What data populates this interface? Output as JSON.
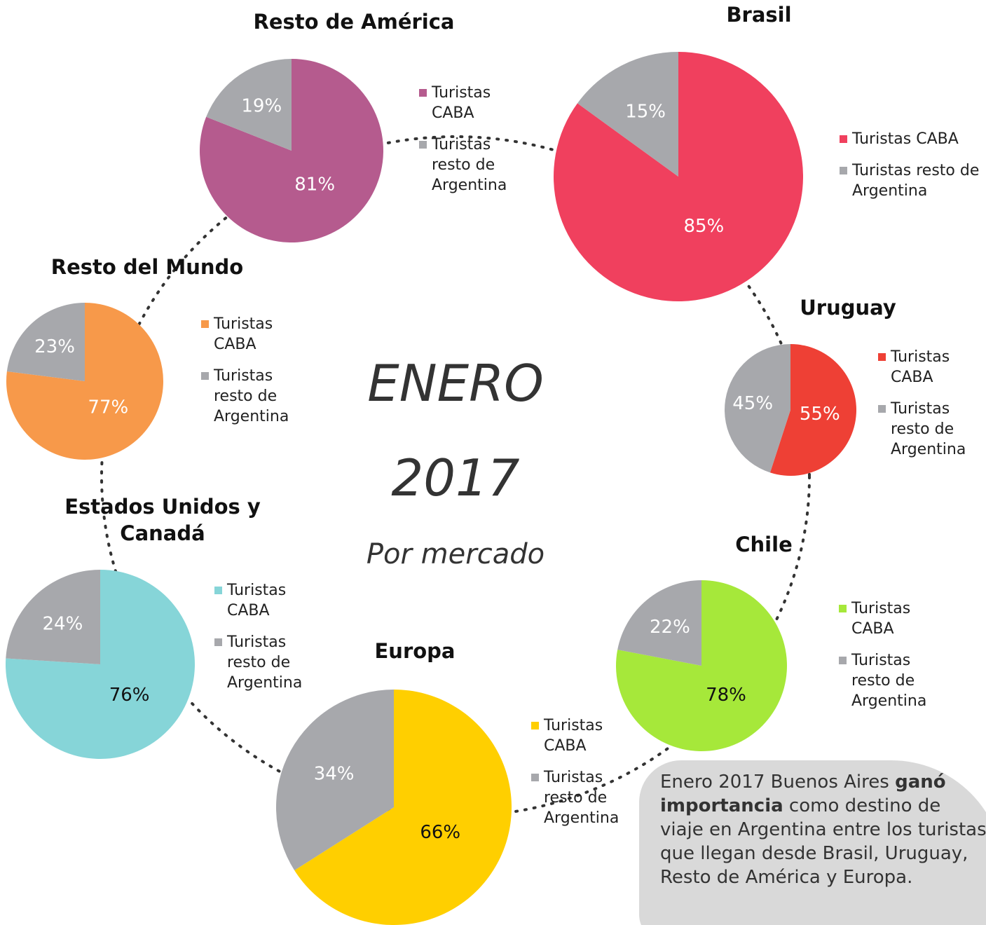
{
  "header": {
    "title": "ENERO",
    "year": "2017",
    "subtitle": "Por mercado"
  },
  "note": {
    "parts": [
      "Enero 2017 Buenos Aires ",
      "ganó importancia",
      " como destino de viaje en Argentina entre los turistas que llegan desde Brasil, Uruguay, Resto de América y Europa."
    ]
  },
  "chart_data": [
    {
      "type": "pie",
      "title": "Resto de América",
      "categories": [
        "Turistas CABA",
        "Turistas resto de Argentina"
      ],
      "values": [
        81,
        19
      ],
      "value_labels": [
        "81%",
        "19%"
      ],
      "colors": [
        "#b55b8e",
        "#a7a8ac"
      ],
      "value_label_colors": [
        "#ffffff",
        "#ffffff"
      ]
    },
    {
      "type": "pie",
      "title": "Brasil",
      "categories": [
        "Turistas CABA",
        "Turistas resto de Argentina"
      ],
      "values": [
        85,
        15
      ],
      "value_labels": [
        "85%",
        "15%"
      ],
      "colors": [
        "#f0405e",
        "#a7a8ac"
      ],
      "value_label_colors": [
        "#ffffff",
        "#ffffff"
      ]
    },
    {
      "type": "pie",
      "title": "Uruguay",
      "categories": [
        "Turistas CABA",
        "Turistas resto de Argentina"
      ],
      "values": [
        55,
        45
      ],
      "value_labels": [
        "55%",
        "45%"
      ],
      "colors": [
        "#ee4035",
        "#a7a8ac"
      ],
      "value_label_colors": [
        "#ffffff",
        "#ffffff"
      ]
    },
    {
      "type": "pie",
      "title": "Chile",
      "categories": [
        "Turistas CABA",
        "Turistas resto de Argentina"
      ],
      "values": [
        78,
        22
      ],
      "value_labels": [
        "78%",
        "22%"
      ],
      "colors": [
        "#a6e83a",
        "#a7a8ac"
      ],
      "value_label_colors": [
        "#111111",
        "#ffffff"
      ]
    },
    {
      "type": "pie",
      "title": "Europa",
      "categories": [
        "Turistas CABA",
        "Turistas resto de Argentina"
      ],
      "values": [
        66,
        34
      ],
      "value_labels": [
        "66%",
        "34%"
      ],
      "colors": [
        "#ffcf00",
        "#a7a8ac"
      ],
      "value_label_colors": [
        "#111111",
        "#ffffff"
      ]
    },
    {
      "type": "pie",
      "title": "Estados Unidos y Canadá",
      "categories": [
        "Turistas CABA",
        "Turistas resto de Argentina"
      ],
      "values": [
        76,
        24
      ],
      "value_labels": [
        "76%",
        "24%"
      ],
      "colors": [
        "#86d5d8",
        "#a7a8ac"
      ],
      "value_label_colors": [
        "#111111",
        "#ffffff"
      ]
    },
    {
      "type": "pie",
      "title": "Resto del Mundo",
      "categories": [
        "Turistas CABA",
        "Turistas resto de Argentina"
      ],
      "values": [
        77,
        23
      ],
      "value_labels": [
        "77%",
        "23%"
      ],
      "colors": [
        "#f7994a",
        "#a7a8ac"
      ],
      "value_label_colors": [
        "#ffffff",
        "#ffffff"
      ]
    }
  ]
}
